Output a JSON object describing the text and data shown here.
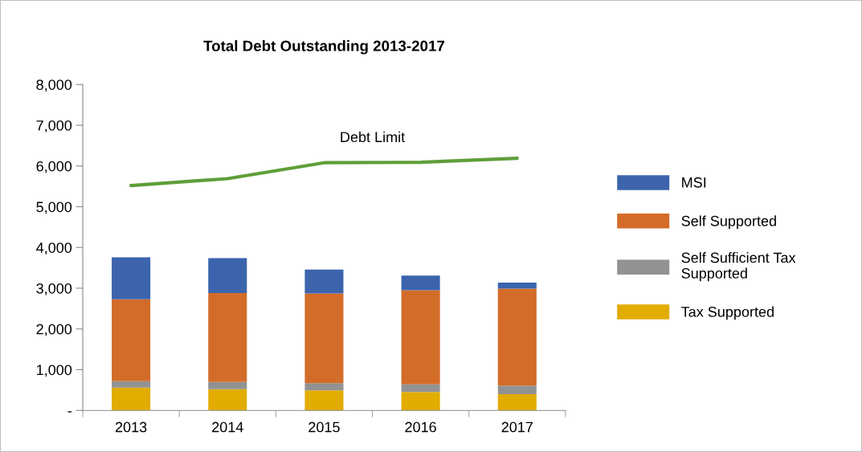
{
  "chart_data": {
    "type": "bar",
    "stacked": true,
    "title": "Total Debt Outstanding 2013-2017",
    "categories": [
      "2013",
      "2014",
      "2015",
      "2016",
      "2017"
    ],
    "series": [
      {
        "name": "Tax Supported",
        "color": "#e2ac00",
        "values": [
          560,
          520,
          490,
          450,
          400
        ]
      },
      {
        "name": "Self Sufficient Tax Supported",
        "color": "#929292",
        "values": [
          160,
          180,
          180,
          190,
          210
        ]
      },
      {
        "name": "Self Supported",
        "color": "#d46c29",
        "values": [
          2010,
          2180,
          2200,
          2310,
          2380
        ]
      },
      {
        "name": "MSI",
        "color": "#3b64ad",
        "values": [
          1030,
          860,
          590,
          360,
          150
        ]
      },
      {
        "name": "Debt Limit",
        "type": "line",
        "color": "#5f9e3a",
        "values": [
          5520,
          5690,
          6080,
          6090,
          6190
        ]
      }
    ],
    "ylim": [
      0,
      8000
    ],
    "yticks": [
      {
        "value": 0,
        "label": "-"
      },
      {
        "value": 1000,
        "label": "1,000"
      },
      {
        "value": 2000,
        "label": "2,000"
      },
      {
        "value": 3000,
        "label": "3,000"
      },
      {
        "value": 4000,
        "label": "4,000"
      },
      {
        "value": 5000,
        "label": "5,000"
      },
      {
        "value": 6000,
        "label": "6,000"
      },
      {
        "value": 7000,
        "label": "7,000"
      },
      {
        "value": 8000,
        "label": "8,000"
      }
    ],
    "grid": false,
    "legend": "right",
    "marker": "none",
    "line_style": "solid"
  }
}
